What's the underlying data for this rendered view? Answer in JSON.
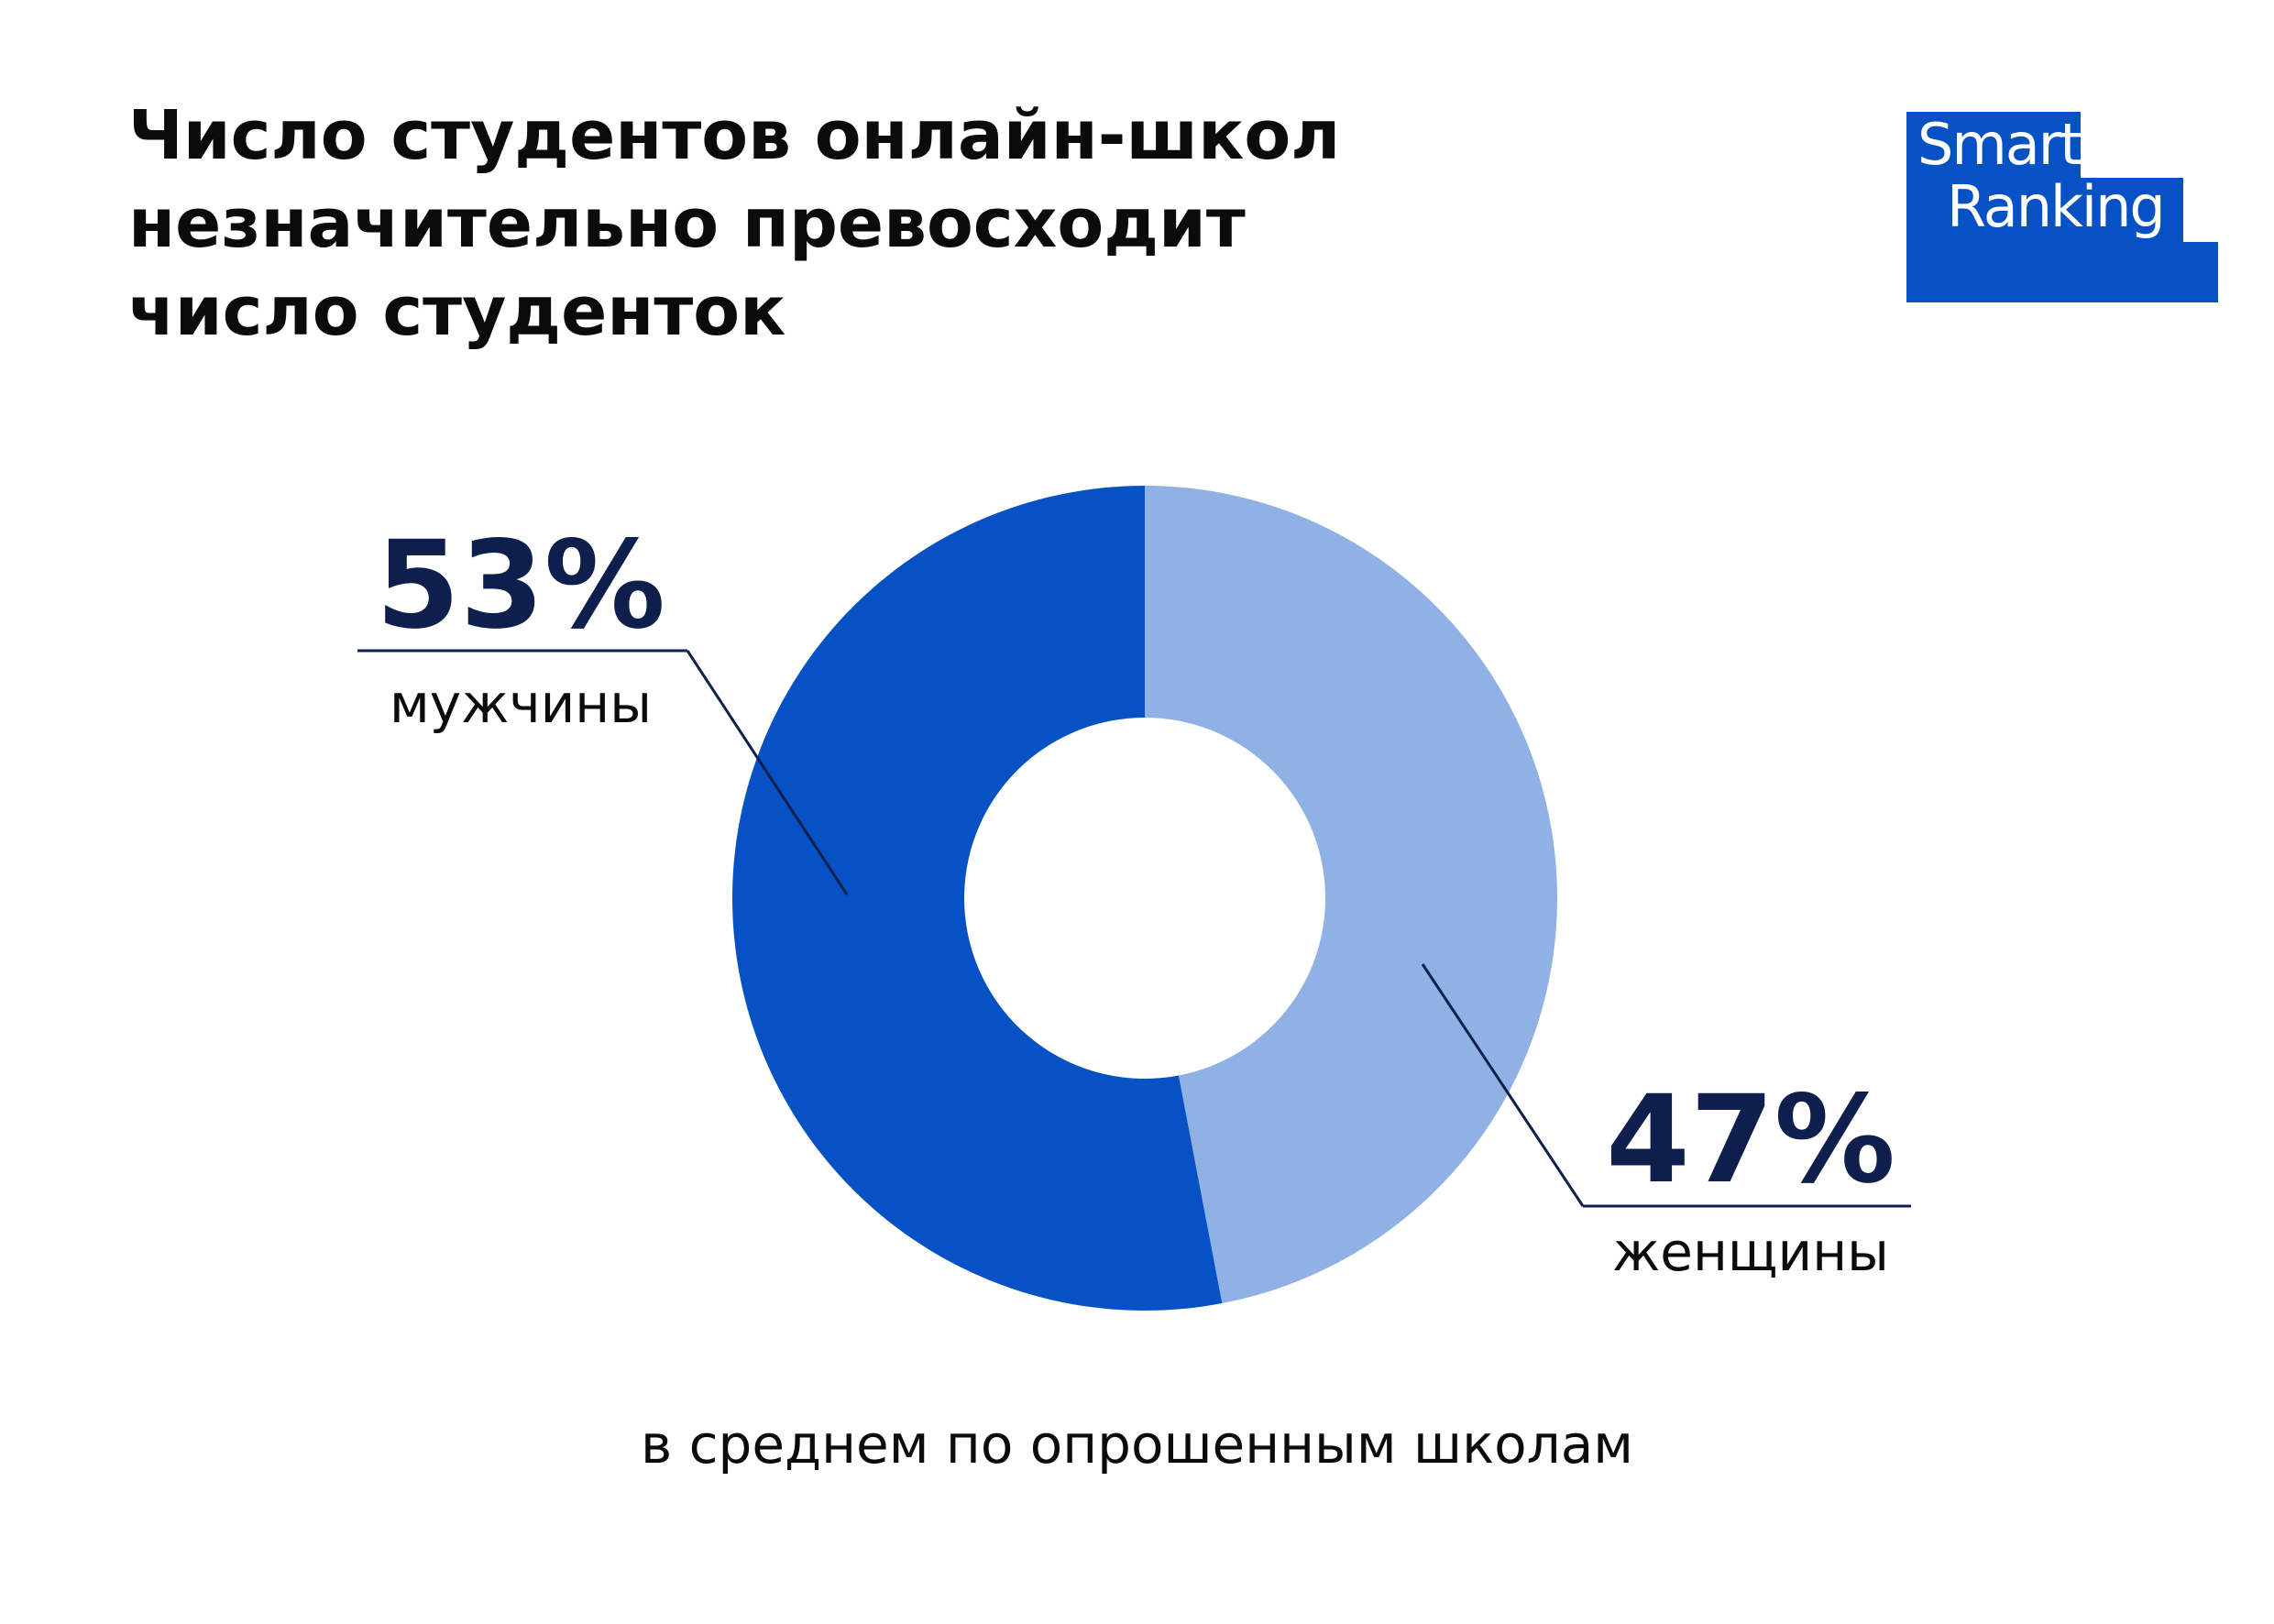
{
  "title_lines": [
    "Число студентов онлайн-школ",
    "незначительно превосходит",
    "число студенток"
  ],
  "logo": {
    "line1": "Smart",
    "line2": "Ranking"
  },
  "footnote": "в среднем по опрошенным школам",
  "colors": {
    "men": "#0652c4",
    "women": "#8fb1e3",
    "label_text": "#0e1f4d",
    "leader_line": "#0e1f4d"
  },
  "chart_data": {
    "type": "pie",
    "donut": true,
    "title": "Число студентов онлайн-школ незначительно превосходит число студенток",
    "subtitle": "в среднем по опрошенным школам",
    "categories": [
      "женщины",
      "мужчины"
    ],
    "values": [
      47,
      53
    ],
    "value_labels": [
      "47%",
      "53%"
    ],
    "unit": "%"
  }
}
